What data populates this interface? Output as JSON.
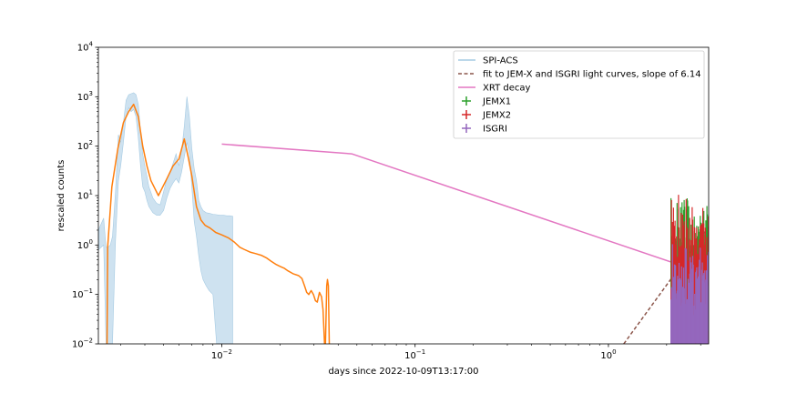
{
  "chart_data": {
    "type": "line",
    "title": "",
    "xlabel": "days since 2022-10-09T13:17:00",
    "ylabel": "rescaled counts",
    "xscale": "log",
    "yscale": "log",
    "xlim": [
      0.0023,
      3.3
    ],
    "ylim": [
      0.01,
      10000
    ],
    "grid": false,
    "legend_position": "top-right",
    "x_ticks": [
      {
        "value": 0.01,
        "base": "10",
        "exp": "−2"
      },
      {
        "value": 0.1,
        "base": "10",
        "exp": "−1"
      },
      {
        "value": 1,
        "base": "10",
        "exp": "0"
      }
    ],
    "y_ticks": [
      {
        "value": 0.01,
        "base": "10",
        "exp": "−2"
      },
      {
        "value": 0.1,
        "base": "10",
        "exp": "−1"
      },
      {
        "value": 1,
        "base": "10",
        "exp": "0"
      },
      {
        "value": 10,
        "base": "10",
        "exp": "1"
      },
      {
        "value": 100,
        "base": "10",
        "exp": "2"
      },
      {
        "value": 1000,
        "base": "10",
        "exp": "3"
      },
      {
        "value": 10000,
        "base": "10",
        "exp": "4"
      }
    ],
    "series": [
      {
        "name": "SPI-ACS",
        "style": "band",
        "color": "#a6cbe3",
        "x": [
          0.0023,
          0.00245,
          0.00252,
          0.00258,
          0.00265,
          0.00272,
          0.00282,
          0.00292,
          0.003,
          0.0031,
          0.0032,
          0.0033,
          0.0034,
          0.0035,
          0.0036,
          0.0037,
          0.0038,
          0.0039,
          0.004,
          0.0041,
          0.0042,
          0.0044,
          0.0046,
          0.0048,
          0.005,
          0.0052,
          0.0054,
          0.0056,
          0.0058,
          0.006,
          0.0062,
          0.0064,
          0.0066,
          0.0068,
          0.007,
          0.0072,
          0.0074,
          0.0076,
          0.0078,
          0.008,
          0.0083,
          0.0086,
          0.009,
          0.0094,
          0.0098,
          0.0102,
          0.0106,
          0.011,
          0.0114
        ],
        "upper": [
          2.0,
          3.5,
          0.9,
          0.9,
          1.0,
          1.5,
          12,
          170,
          120,
          300,
          850,
          1100,
          1150,
          1200,
          1100,
          700,
          200,
          70,
          40,
          25,
          15,
          9,
          7,
          6.5,
          12,
          22,
          30,
          45,
          70,
          40,
          80,
          250,
          1000,
          400,
          90,
          35,
          20,
          8,
          6,
          5,
          4.5,
          4.4,
          4.2,
          4.1,
          4.0,
          4.0,
          3.9,
          3.9,
          3.8
        ],
        "lower": [
          0.8,
          1.0,
          0.01,
          0.01,
          0.01,
          0.01,
          1.2,
          20,
          40,
          120,
          400,
          600,
          500,
          550,
          400,
          150,
          40,
          15,
          12,
          8,
          6,
          4.5,
          4,
          4,
          5,
          9,
          14,
          18,
          22,
          18,
          30,
          60,
          120,
          70,
          15,
          3,
          1.5,
          0.6,
          0.3,
          0.2,
          0.15,
          0.12,
          0.1,
          0.01,
          0.01,
          0.01,
          0.01,
          0.01,
          0.01
        ]
      },
      {
        "name": "",
        "style": "line",
        "color": "#ff7f0e",
        "x": [
          0.00255,
          0.00257,
          0.0027,
          0.0029,
          0.0031,
          0.0033,
          0.0035,
          0.0037,
          0.0039,
          0.0041,
          0.0043,
          0.0047,
          0.0052,
          0.0056,
          0.006,
          0.0064,
          0.0067,
          0.007,
          0.0074,
          0.0078,
          0.0082,
          0.0087,
          0.0093,
          0.01,
          0.0108,
          0.0116,
          0.0124,
          0.013,
          0.014,
          0.015,
          0.016,
          0.017,
          0.018,
          0.019,
          0.02,
          0.021,
          0.022,
          0.0235,
          0.025,
          0.026,
          0.0268,
          0.0275,
          0.0282,
          0.029,
          0.0298,
          0.0305,
          0.0312,
          0.032,
          0.0328,
          0.0334,
          0.034,
          0.0344,
          0.0349,
          0.0352,
          0.0356,
          0.036
        ],
        "y": [
          0.01,
          0.9,
          15,
          90,
          300,
          500,
          700,
          400,
          100,
          40,
          20,
          10,
          22,
          40,
          55,
          140,
          60,
          25,
          6,
          3.2,
          2.5,
          2.2,
          1.8,
          1.6,
          1.4,
          1.15,
          0.9,
          0.82,
          0.72,
          0.67,
          0.62,
          0.55,
          0.47,
          0.41,
          0.37,
          0.34,
          0.3,
          0.26,
          0.24,
          0.21,
          0.15,
          0.11,
          0.1,
          0.12,
          0.1,
          0.075,
          0.07,
          0.11,
          0.09,
          0.05,
          0.01,
          0.01,
          0.15,
          0.2,
          0.15,
          0.01
        ]
      },
      {
        "name": "fit to JEM-X and ISGRI light curves, slope of 6.14",
        "style": "dashed",
        "color": "#8c564b",
        "x": [
          1.2,
          3.3
        ],
        "y": [
          0.01,
          2.3
        ]
      },
      {
        "name": "XRT decay",
        "style": "line",
        "color": "#e377c2",
        "x": [
          0.01,
          0.047,
          3.3
        ],
        "y": [
          110,
          70,
          0.25
        ]
      },
      {
        "name": "JEMX1",
        "style": "errorbar",
        "color": "#2ca02c",
        "x_range": [
          2.1,
          3.3
        ],
        "y_range": [
          0.03,
          2.2
        ]
      },
      {
        "name": "JEMX2",
        "style": "errorbar",
        "color": "#d62728",
        "x_range": [
          2.1,
          3.3
        ],
        "y_range": [
          0.02,
          2.0
        ]
      },
      {
        "name": "ISGRI",
        "style": "errorbar",
        "color": "#9467bd",
        "x_range": [
          2.1,
          3.3
        ],
        "y_range": [
          0.01,
          0.15
        ]
      }
    ]
  }
}
